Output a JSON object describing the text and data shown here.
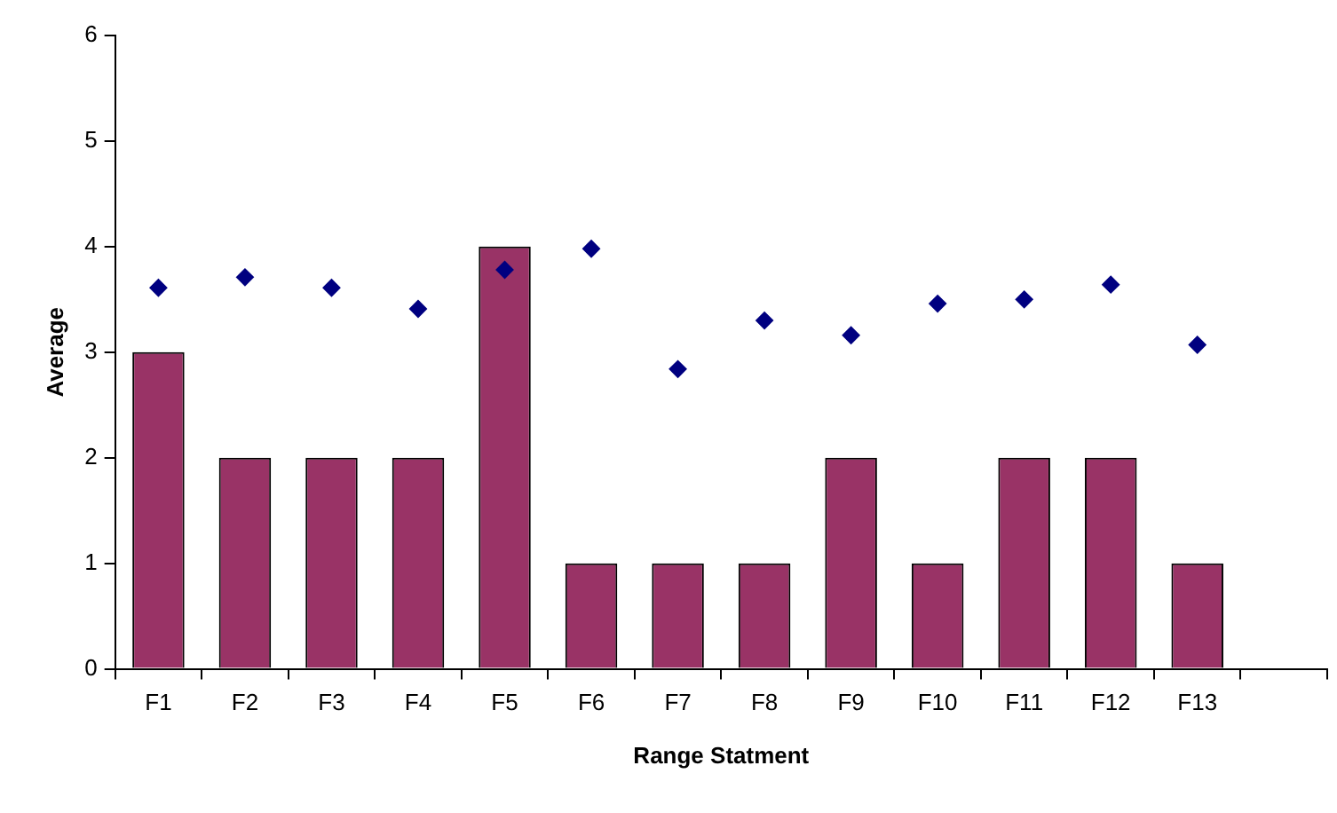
{
  "chart_data": {
    "type": "bar",
    "xlabel": "Range Statment",
    "ylabel": "Average",
    "categories": [
      "F1",
      "F2",
      "F3",
      "F4",
      "F5",
      "F6",
      "F7",
      "F8",
      "F9",
      "F10",
      "F11",
      "F12",
      "F13",
      null
    ],
    "series": [
      {
        "color": "#993366",
        "values": [
          3,
          2,
          2,
          2,
          4,
          1,
          1,
          1,
          2,
          1,
          2,
          2,
          1,
          null
        ]
      },
      {
        "type": "scatter",
        "color": "#000080",
        "marker": "diamond",
        "x": [
          "F1",
          "F2",
          "F3",
          "F4",
          "F5",
          "F6",
          "F7",
          "F8",
          "F9",
          "F10",
          "F11",
          "F12",
          "F13"
        ],
        "values": [
          3.61,
          3.71,
          3.61,
          3.41,
          3.78,
          3.98,
          2.84,
          3.3,
          3.16,
          3.46,
          3.5,
          3.64,
          3.07
        ]
      }
    ],
    "ylim": [
      0,
      6
    ],
    "yticks": [
      0,
      1,
      2,
      3,
      4,
      5,
      6
    ],
    "grid": false,
    "legend": false
  }
}
